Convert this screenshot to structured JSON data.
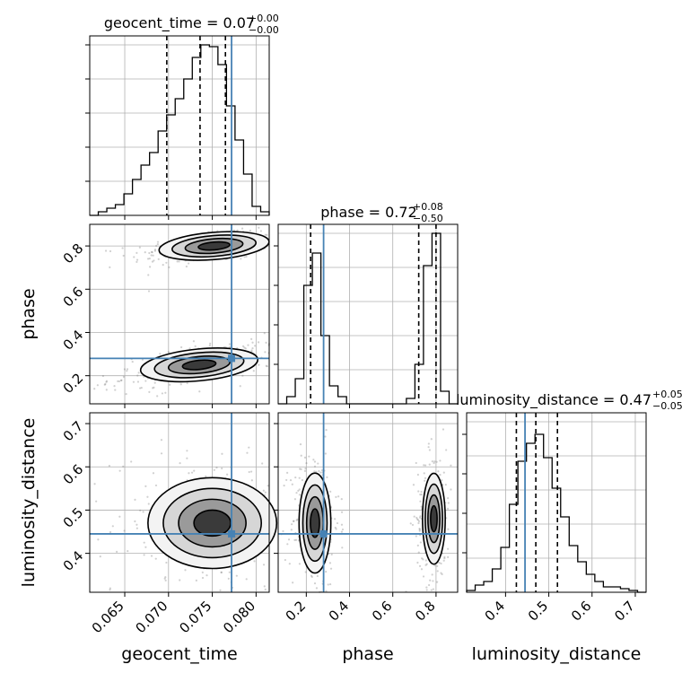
{
  "figure_title": "",
  "chart_data": {
    "type": "corner",
    "parameters": [
      "geocent_time",
      "phase",
      "luminosity_distance"
    ],
    "truth": {
      "geocent_time": 0.0772,
      "phase": 0.28,
      "luminosity_distance": 0.445
    },
    "truth_color": "#4682b4",
    "ranges": {
      "geocent_time": [
        0.061,
        0.0815
      ],
      "phase": [
        0.07,
        0.9
      ],
      "luminosity_distance": [
        0.31,
        0.725
      ]
    },
    "grid": true,
    "panels": {
      "geocent_time": {
        "title": "geocent_time = 0.07",
        "title_sup": "+0.00",
        "title_sub": "−0.00",
        "quantile_lines": [
          0.0698,
          0.0736,
          0.0765
        ],
        "hist_counts": [
          0,
          0.02,
          0.04,
          0.06,
          0.12,
          0.2,
          0.28,
          0.35,
          0.47,
          0.56,
          0.65,
          0.76,
          0.88,
          0.95,
          0.94,
          0.84,
          0.61,
          0.42,
          0.23,
          0.05,
          0.02
        ]
      },
      "phase": {
        "title": "phase = 0.72",
        "title_sup": "+0.08",
        "title_sub": "−0.50",
        "quantile_lines": [
          0.22,
          0.72,
          0.8
        ],
        "hist_counts": [
          0,
          0.04,
          0.14,
          0.66,
          0.84,
          0.38,
          0.1,
          0.04,
          0,
          0,
          0,
          0,
          0,
          0,
          0,
          0.03,
          0.22,
          0.77,
          0.95,
          0.07,
          0
        ]
      },
      "luminosity_distance": {
        "title": "luminosity_distance = 0.47",
        "title_sup": "+0.05",
        "title_sub": "−0.05",
        "quantile_lines": [
          0.425,
          0.47,
          0.52
        ],
        "hist_counts": [
          0.01,
          0.04,
          0.06,
          0.13,
          0.25,
          0.49,
          0.73,
          0.83,
          0.88,
          0.75,
          0.58,
          0.42,
          0.26,
          0.17,
          0.1,
          0.06,
          0.03,
          0.03,
          0.02,
          0.01,
          0
        ]
      }
    },
    "ticks": {
      "geocent_time": [
        "0.065",
        "0.070",
        "0.075",
        "0.080"
      ],
      "phase_y": [
        "0.2",
        "0.4",
        "0.6",
        "0.8"
      ],
      "phase_x": [
        "0.2",
        "0.4",
        "0.6",
        "0.8"
      ],
      "luminosity_distance_y": [
        "0.4",
        "0.5",
        "0.6",
        "0.7"
      ],
      "luminosity_distance_x": [
        "0.4",
        "0.5",
        "0.6",
        "0.7"
      ]
    },
    "axis_labels": {
      "x": [
        "geocent_time",
        "phase",
        "luminosity_distance"
      ],
      "y": [
        "phase",
        "luminosity_distance"
      ]
    },
    "density_blobs": {
      "phase_vs_geocent_time": [
        {
          "cx": 0.0752,
          "cy": 0.8,
          "sx": 0.003,
          "sy": 0.03,
          "rho": 0.55,
          "w": 1.0
        },
        {
          "cx": 0.0735,
          "cy": 0.25,
          "sx": 0.0032,
          "sy": 0.035,
          "rho": 0.6,
          "w": 1.0
        }
      ],
      "luminosity_distance_vs_geocent_time": [
        {
          "cx": 0.075,
          "cy": 0.47,
          "sx": 0.0035,
          "sy": 0.05,
          "rho": 0.0,
          "w": 1.0
        }
      ],
      "luminosity_distance_vs_phase": [
        {
          "cx": 0.24,
          "cy": 0.47,
          "sx": 0.035,
          "sy": 0.055,
          "rho": 0.0,
          "w": 1.0
        },
        {
          "cx": 0.79,
          "cy": 0.48,
          "sx": 0.025,
          "sy": 0.05,
          "rho": 0.0,
          "w": 1.0
        }
      ]
    }
  }
}
